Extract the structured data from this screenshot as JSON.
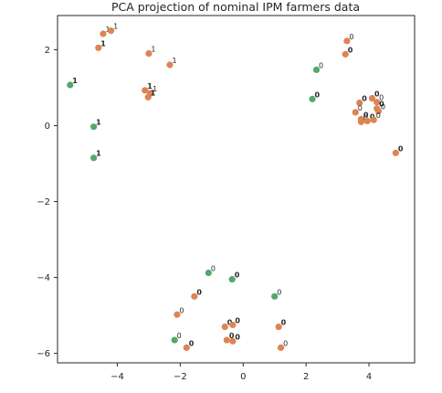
{
  "chart_data": {
    "type": "scatter",
    "title": "PCA projection of nominal IPM farmers data",
    "xlabel": "",
    "ylabel": "",
    "xlim": [
      -5.9,
      5.45
    ],
    "ylim": [
      -6.25,
      2.9
    ],
    "xticks": [
      -4,
      -2,
      0,
      2,
      4
    ],
    "yticks": [
      -6,
      -4,
      -2,
      0,
      2
    ],
    "xtick_labels": [
      "−4",
      "−2",
      "0",
      "2",
      "4"
    ],
    "ytick_labels": [
      "−6",
      "−4",
      "−2",
      "0",
      "2"
    ],
    "grid": false,
    "colors": {
      "orange": "#dd8452",
      "green": "#55a868"
    },
    "points": [
      {
        "x": -4.45,
        "y": 2.42,
        "color": "orange",
        "label": "1",
        "bold": false
      },
      {
        "x": -4.2,
        "y": 2.5,
        "color": "orange",
        "label": "1",
        "bold": false
      },
      {
        "x": -4.6,
        "y": 2.05,
        "color": "orange",
        "label": "1",
        "bold": true
      },
      {
        "x": -3.0,
        "y": 1.9,
        "color": "orange",
        "label": "1",
        "bold": false
      },
      {
        "x": -2.33,
        "y": 1.6,
        "color": "orange",
        "label": "1",
        "bold": false
      },
      {
        "x": -5.5,
        "y": 1.07,
        "color": "green",
        "label": "1",
        "bold": true
      },
      {
        "x": -3.12,
        "y": 0.93,
        "color": "orange",
        "label": "1",
        "bold": true
      },
      {
        "x": -2.95,
        "y": 0.85,
        "color": "orange",
        "label": "1",
        "bold": false
      },
      {
        "x": -3.02,
        "y": 0.75,
        "color": "orange",
        "label": "1",
        "bold": true
      },
      {
        "x": -4.75,
        "y": -0.03,
        "color": "green",
        "label": "1",
        "bold": true
      },
      {
        "x": -4.75,
        "y": -0.85,
        "color": "green",
        "label": "1",
        "bold": true
      },
      {
        "x": 3.3,
        "y": 2.23,
        "color": "orange",
        "label": "0",
        "bold": false
      },
      {
        "x": 3.25,
        "y": 1.88,
        "color": "orange",
        "label": "0",
        "bold": true
      },
      {
        "x": 2.33,
        "y": 1.47,
        "color": "green",
        "label": "0",
        "bold": false
      },
      {
        "x": 2.2,
        "y": 0.7,
        "color": "green",
        "label": "0",
        "bold": true
      },
      {
        "x": 3.7,
        "y": 0.6,
        "color": "orange",
        "label": "0",
        "bold": true
      },
      {
        "x": 4.1,
        "y": 0.72,
        "color": "orange",
        "label": "0",
        "bold": true
      },
      {
        "x": 4.25,
        "y": 0.62,
        "color": "orange",
        "label": "0",
        "bold": false
      },
      {
        "x": 4.25,
        "y": 0.45,
        "color": "orange",
        "label": "0",
        "bold": true
      },
      {
        "x": 4.3,
        "y": 0.38,
        "color": "orange",
        "label": "0",
        "bold": false
      },
      {
        "x": 3.57,
        "y": 0.35,
        "color": "orange",
        "label": "0",
        "bold": false
      },
      {
        "x": 3.75,
        "y": 0.17,
        "color": "orange",
        "label": "0",
        "bold": true
      },
      {
        "x": 3.75,
        "y": 0.1,
        "color": "orange",
        "label": "0",
        "bold": false
      },
      {
        "x": 3.95,
        "y": 0.12,
        "color": "orange",
        "label": "0",
        "bold": true
      },
      {
        "x": 4.15,
        "y": 0.15,
        "color": "orange",
        "label": "0",
        "bold": false
      },
      {
        "x": 4.85,
        "y": -0.72,
        "color": "orange",
        "label": "0",
        "bold": true
      },
      {
        "x": -1.1,
        "y": -3.88,
        "color": "green",
        "label": "0",
        "bold": false
      },
      {
        "x": -0.35,
        "y": -4.05,
        "color": "green",
        "label": "0",
        "bold": true
      },
      {
        "x": -1.55,
        "y": -4.5,
        "color": "orange",
        "label": "0",
        "bold": true
      },
      {
        "x": 1.0,
        "y": -4.5,
        "color": "green",
        "label": "0",
        "bold": false
      },
      {
        "x": -2.1,
        "y": -4.98,
        "color": "orange",
        "label": "0",
        "bold": false
      },
      {
        "x": -0.58,
        "y": -5.3,
        "color": "orange",
        "label": "0",
        "bold": true
      },
      {
        "x": -0.33,
        "y": -5.25,
        "color": "orange",
        "label": "0",
        "bold": true
      },
      {
        "x": 1.13,
        "y": -5.3,
        "color": "orange",
        "label": "0",
        "bold": true
      },
      {
        "x": -2.18,
        "y": -5.65,
        "color": "green",
        "label": "0",
        "bold": false
      },
      {
        "x": -0.52,
        "y": -5.65,
        "color": "orange",
        "label": "0",
        "bold": true
      },
      {
        "x": -0.33,
        "y": -5.68,
        "color": "orange",
        "label": "0",
        "bold": true
      },
      {
        "x": -1.8,
        "y": -5.85,
        "color": "orange",
        "label": "0",
        "bold": true
      },
      {
        "x": 1.2,
        "y": -5.85,
        "color": "orange",
        "label": "0",
        "bold": false
      }
    ]
  }
}
